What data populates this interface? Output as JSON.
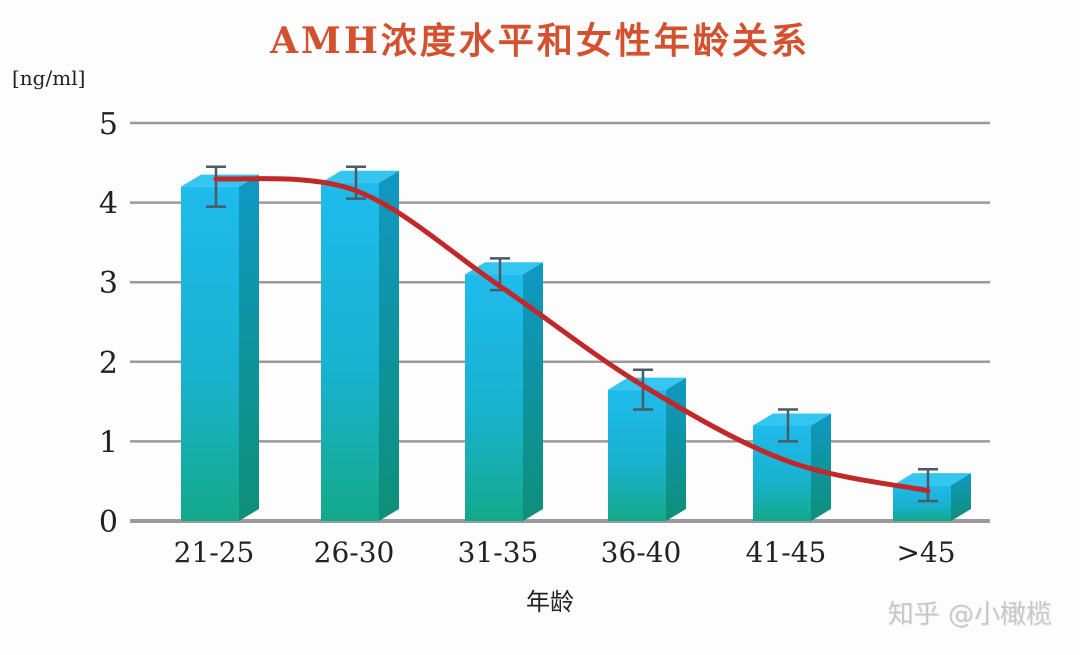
{
  "chart_data": {
    "type": "bar",
    "title": "AMH浓度水平和女性年龄关系",
    "ylabel": "[ng/ml]",
    "xlabel": "年龄",
    "categories": [
      "21-25",
      "26-30",
      "31-35",
      "36-40",
      "41-45",
      ">45"
    ],
    "values": [
      4.2,
      4.25,
      3.1,
      1.65,
      1.2,
      0.45
    ],
    "error_bars": [
      0.25,
      0.2,
      0.2,
      0.25,
      0.2,
      0.2
    ],
    "trend_line": {
      "type": "smooth",
      "color": "#c0282a",
      "points": [
        4.3,
        4.15,
        2.95,
        1.7,
        0.75,
        0.38
      ]
    },
    "ylim": [
      0,
      5
    ],
    "yticks": [
      0,
      1,
      2,
      3,
      4,
      5
    ],
    "grid": true,
    "legend": null,
    "colors": {
      "bar_top": "#1db8e8",
      "bar_bottom": "#17a88a",
      "bar_side": "#0f8fb8",
      "grid": "#9a9a9a",
      "title": "#d4512f"
    }
  },
  "watermark": "知乎 @小橄榄"
}
